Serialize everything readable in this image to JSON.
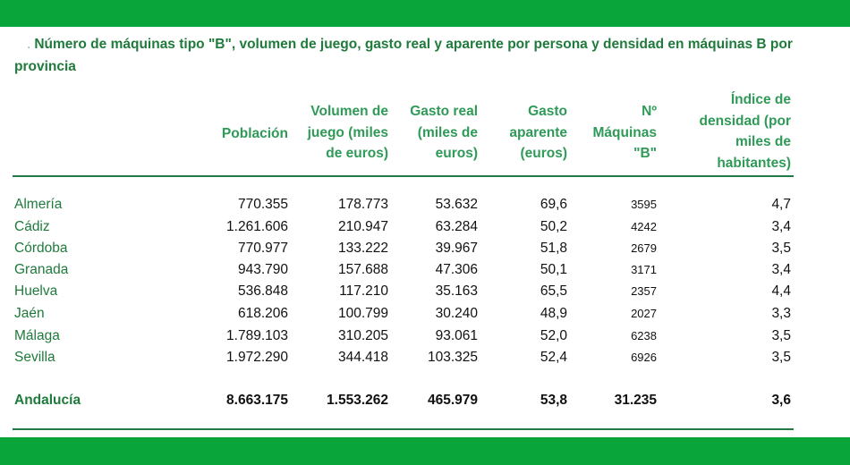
{
  "title": "Número de máquinas tipo \"B\", volumen de juego, gasto real y aparente por persona y densidad en máquinas B por provincia",
  "title_marker": ".",
  "colors": {
    "band": "#0aa53a",
    "title": "#1f7a3c",
    "header": "#2f9a58",
    "rule": "#1f7a45"
  },
  "table": {
    "headers": [
      "Población",
      "Volumen de\njuego (miles\nde euros)",
      "Gasto real\n(miles de\neuros)",
      "Gasto\naparente\n(euros)",
      "Nº\nMáquinas\n\"B\"",
      "Índice de\ndensidad (por\nmiles de\nhabitantes)"
    ],
    "rows": [
      [
        "Almería",
        "770.355",
        "178.773",
        "53.632",
        "69,6",
        "3595",
        "4,7"
      ],
      [
        "Cádiz",
        "1.261.606",
        "210.947",
        "63.284",
        "50,2",
        "4242",
        "3,4"
      ],
      [
        "Córdoba",
        "770.977",
        "133.222",
        "39.967",
        "51,8",
        "2679",
        "3,5"
      ],
      [
        "Granada",
        "943.790",
        "157.688",
        "47.306",
        "50,1",
        "3171",
        "3,4"
      ],
      [
        "Huelva",
        "536.848",
        "117.210",
        "35.163",
        "65,5",
        "2357",
        "4,4"
      ],
      [
        "Jaén",
        "618.206",
        "100.799",
        "30.240",
        "48,9",
        "2027",
        "3,3"
      ],
      [
        "Málaga",
        "1.789.103",
        "310.205",
        "93.061",
        "52,0",
        "6238",
        "3,5"
      ],
      [
        "Sevilla",
        "1.972.290",
        "344.418",
        "103.325",
        "52,4",
        "6926",
        "3,5"
      ]
    ],
    "total": [
      "Andalucía",
      "8.663.175",
      "1.553.262",
      "465.979",
      "53,8",
      "31.235",
      "3,6"
    ]
  }
}
